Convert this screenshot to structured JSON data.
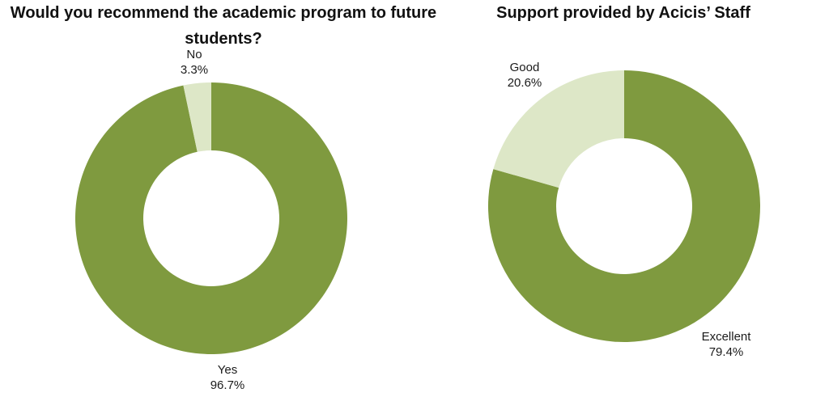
{
  "colors": {
    "primary": "#7f9a3f",
    "secondary": "#dde7c7",
    "background": "#ffffff"
  },
  "chart_data": [
    {
      "type": "pie",
      "title": "Would you recommend the academic program to future students?",
      "donut": true,
      "slices": [
        {
          "label": "Yes",
          "value": 96.7,
          "display": "96.7%",
          "color": "#7f9a3f"
        },
        {
          "label": "No",
          "value": 3.3,
          "display": "3.3%",
          "color": "#dde7c7"
        }
      ]
    },
    {
      "type": "pie",
      "title": "Support provided by Acicis’ Staff",
      "donut": true,
      "slices": [
        {
          "label": "Excellent",
          "value": 79.4,
          "display": "79.4%",
          "color": "#7f9a3f"
        },
        {
          "label": "Good",
          "value": 20.6,
          "display": "20.6%",
          "color": "#dde7c7"
        }
      ]
    }
  ]
}
